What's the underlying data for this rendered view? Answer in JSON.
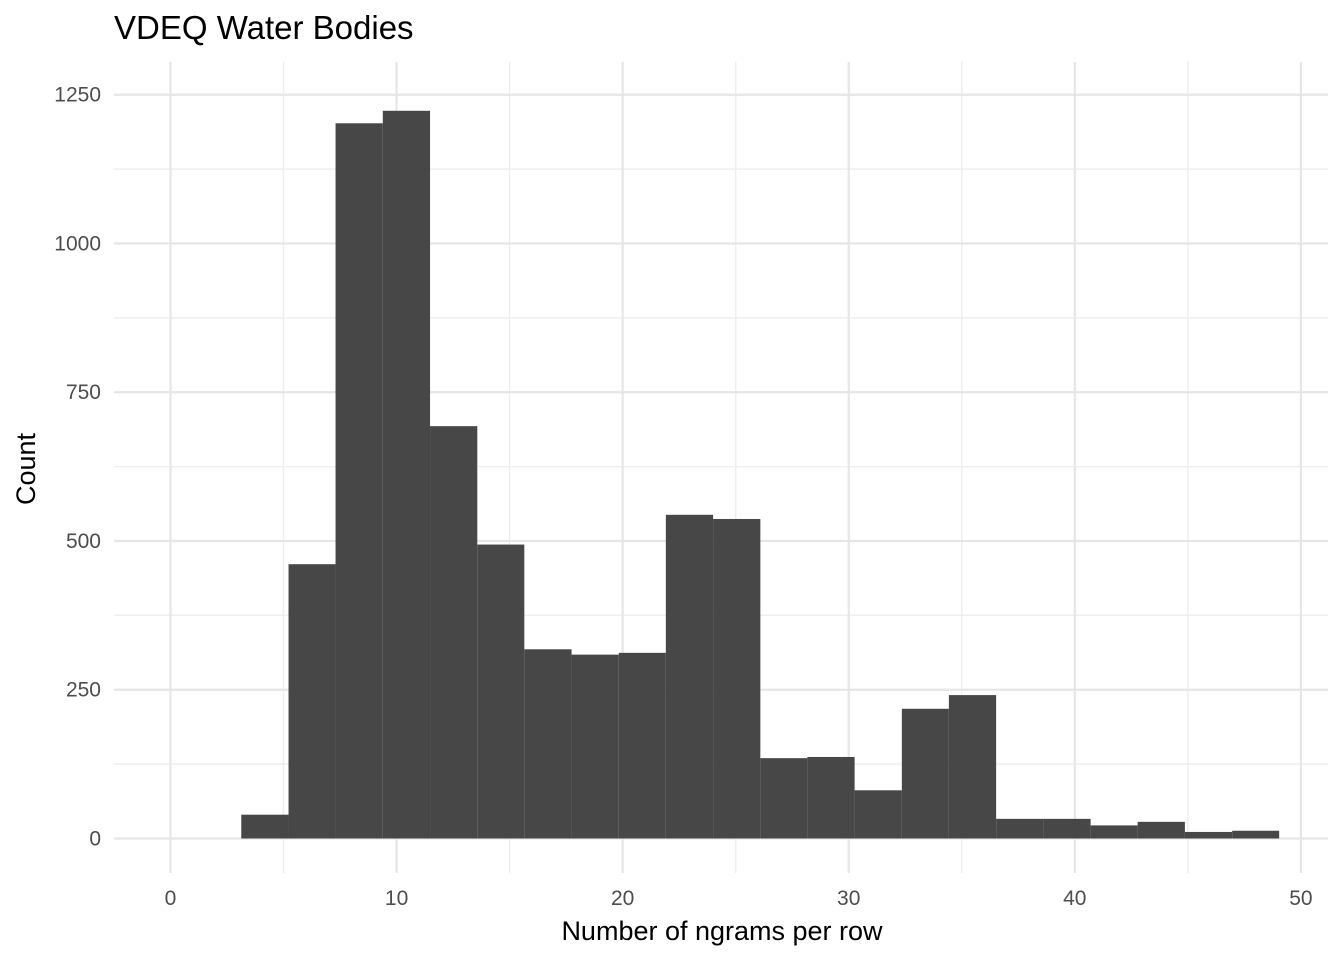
{
  "chart_data": {
    "type": "bar",
    "subtype": "histogram",
    "title": "VDEQ Water Bodies",
    "xlabel": "Number of ngrams per row",
    "ylabel": "Count",
    "xlim": [
      -2.5,
      51.2
    ],
    "ylim": [
      -58,
      1305
    ],
    "x_ticks": [
      0,
      10,
      20,
      30,
      40,
      50
    ],
    "y_ticks": [
      0,
      250,
      500,
      750,
      1000,
      1250
    ],
    "grid": true,
    "bar_color": "#474747",
    "bins": [
      {
        "x0": 3.13,
        "x1": 5.22,
        "count": 40
      },
      {
        "x0": 5.22,
        "x1": 7.3,
        "count": 461
      },
      {
        "x0": 7.3,
        "x1": 9.39,
        "count": 1202
      },
      {
        "x0": 9.39,
        "x1": 11.48,
        "count": 1223
      },
      {
        "x0": 11.48,
        "x1": 13.57,
        "count": 693
      },
      {
        "x0": 13.57,
        "x1": 15.65,
        "count": 494
      },
      {
        "x0": 15.65,
        "x1": 17.74,
        "count": 318
      },
      {
        "x0": 17.74,
        "x1": 19.83,
        "count": 309
      },
      {
        "x0": 19.83,
        "x1": 21.91,
        "count": 312
      },
      {
        "x0": 21.91,
        "x1": 24.0,
        "count": 544
      },
      {
        "x0": 24.0,
        "x1": 26.09,
        "count": 537
      },
      {
        "x0": 26.09,
        "x1": 28.17,
        "count": 135
      },
      {
        "x0": 28.17,
        "x1": 30.26,
        "count": 137
      },
      {
        "x0": 30.26,
        "x1": 32.35,
        "count": 81
      },
      {
        "x0": 32.35,
        "x1": 34.43,
        "count": 218
      },
      {
        "x0": 34.43,
        "x1": 36.52,
        "count": 241
      },
      {
        "x0": 36.52,
        "x1": 38.61,
        "count": 33
      },
      {
        "x0": 38.61,
        "x1": 40.7,
        "count": 33
      },
      {
        "x0": 40.7,
        "x1": 42.78,
        "count": 22
      },
      {
        "x0": 42.78,
        "x1": 44.87,
        "count": 28
      },
      {
        "x0": 44.87,
        "x1": 46.96,
        "count": 11
      },
      {
        "x0": 46.96,
        "x1": 49.04,
        "count": 13
      }
    ]
  }
}
